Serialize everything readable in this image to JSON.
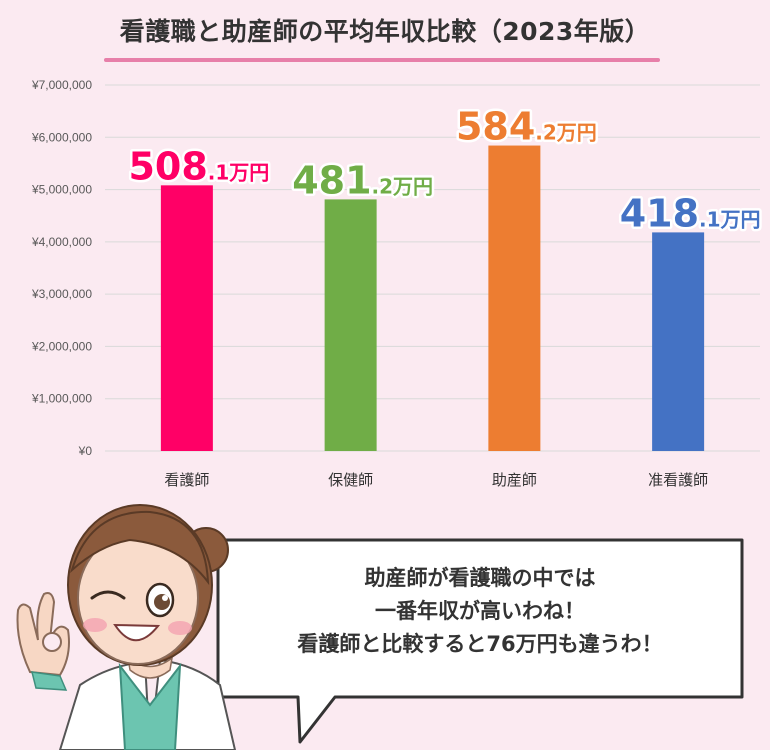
{
  "title": "看護職と助産師の平均年収比較（2023年版）",
  "colors": {
    "background": "#fbeaf1",
    "title_underline": "#e77fa9",
    "grid": "#d9d9d9"
  },
  "chart_data": {
    "type": "bar",
    "categories": [
      "看護師",
      "保健師",
      "助産師",
      "准看護師"
    ],
    "values": [
      5081000,
      4812000,
      5842000,
      4181000
    ],
    "ylim": [
      0,
      7000000
    ],
    "yticks": [
      0,
      1000000,
      2000000,
      3000000,
      4000000,
      5000000,
      6000000,
      7000000
    ],
    "ytick_labels": [
      "¥0",
      "¥1,000,000",
      "¥2,000,000",
      "¥3,000,000",
      "¥4,000,000",
      "¥5,000,000",
      "¥6,000,000",
      "¥7,000,000"
    ],
    "bar_colors": [
      "#ff0066",
      "#70ad47",
      "#ed7d31",
      "#4472c4"
    ],
    "data_labels": [
      {
        "major": "508",
        "minor": ".1万円"
      },
      {
        "major": "481",
        "minor": ".2万円"
      },
      {
        "major": "584",
        "minor": ".2万円"
      },
      {
        "major": "418",
        "minor": ".1万円"
      }
    ],
    "grid": true,
    "legend": "none"
  },
  "speech": {
    "lines": [
      "助産師が看護職の中では",
      "一番年収が高いわね！",
      "看護師と比較すると76万円も違うわ！"
    ]
  },
  "character": {
    "hair_color": "#8b5a3c",
    "scrubs_color": "#6cc5b0"
  }
}
